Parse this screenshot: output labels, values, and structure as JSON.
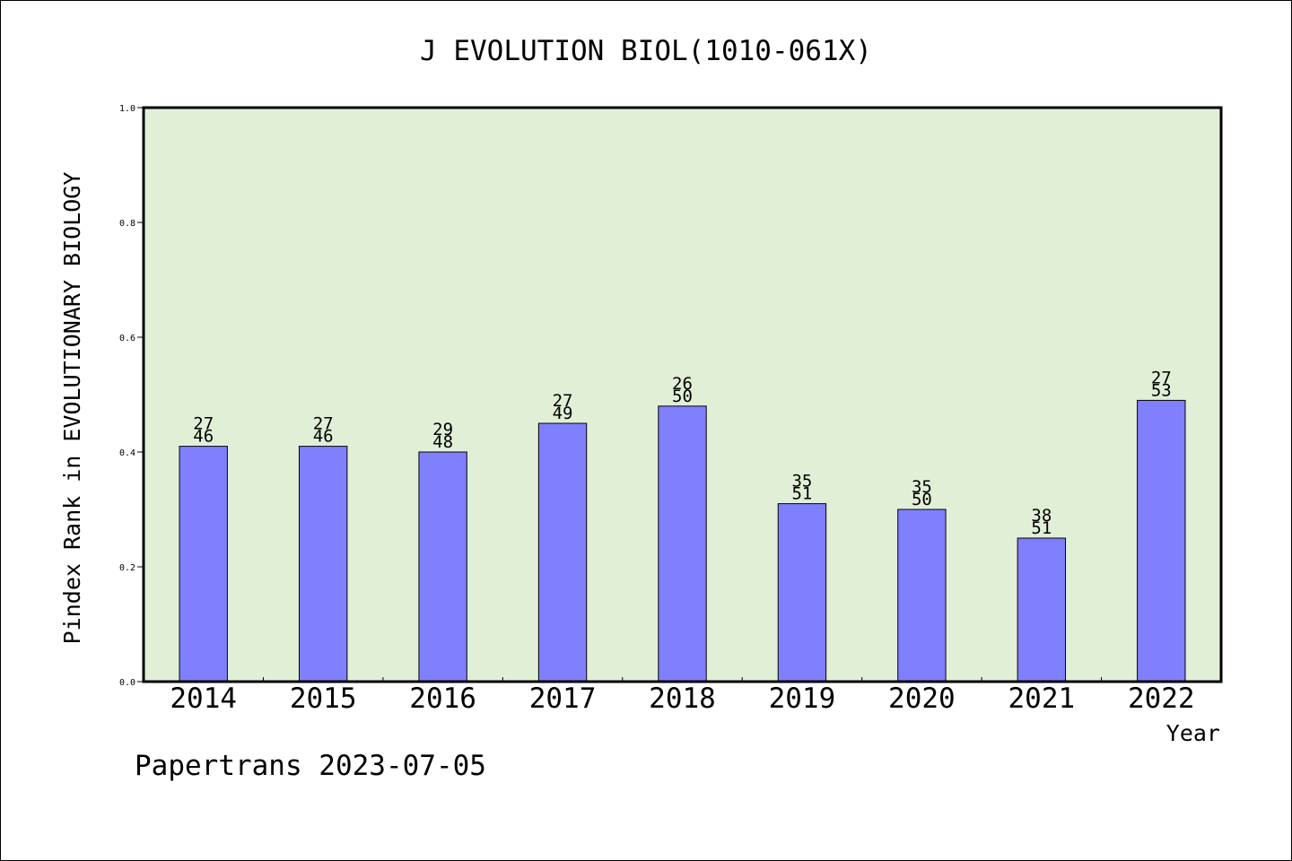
{
  "chart_data": {
    "type": "bar",
    "title": "J EVOLUTION BIOL(1010-061X)",
    "xlabel": "Year",
    "ylabel": "Pindex Rank in EVOLUTIONARY BIOLOGY",
    "ylim": [
      0.0,
      1.0
    ],
    "yticks": [
      "0.0",
      "0.2",
      "0.4",
      "0.6",
      "0.8",
      "1.0"
    ],
    "categories": [
      "2014",
      "2015",
      "2016",
      "2017",
      "2018",
      "2019",
      "2020",
      "2021",
      "2022"
    ],
    "values": [
      0.41,
      0.41,
      0.4,
      0.45,
      0.48,
      0.31,
      0.3,
      0.25,
      0.49
    ],
    "ranks": [
      "27",
      "27",
      "29",
      "27",
      "26",
      "35",
      "35",
      "38",
      "27"
    ],
    "totals": [
      "46",
      "46",
      "48",
      "49",
      "50",
      "51",
      "50",
      "51",
      "53"
    ],
    "grid": false,
    "legend": "none"
  },
  "colors": {
    "plot_background": "#e2efd7",
    "bar_fill": "#8080ff",
    "bar_stroke": "#000000",
    "text": "#000000"
  },
  "footer": "Papertrans 2023-07-05"
}
